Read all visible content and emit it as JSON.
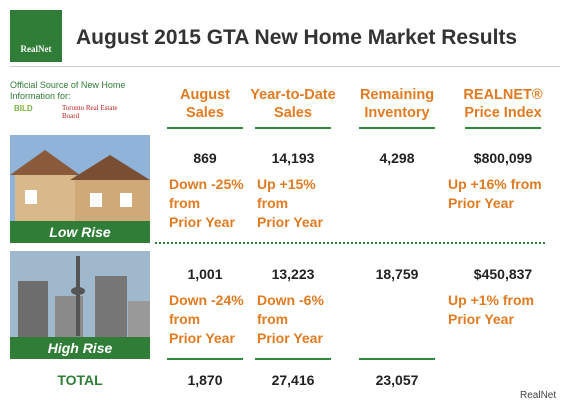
{
  "header": {
    "logo": "RealNet",
    "title": "August 2015 GTA New Home Market Results"
  },
  "sidebar": {
    "source_note": "Official Source of New Home Information for:",
    "logos": [
      "BILD",
      "Toronto Real Estate Board"
    ]
  },
  "table": {
    "columns": [
      "August\nSales",
      "Year-to-Date\nSales",
      "Remaining\nInventory",
      "REALNET®\nPrice Index"
    ],
    "rows": [
      {
        "label": "Low Rise",
        "values": [
          "869",
          "14,193",
          "4,298",
          "$800,099"
        ],
        "changes": [
          "Down -25%\nfrom\nPrior Year",
          "Up +15%\nfrom\nPrior Year",
          null,
          "Up +16% from\nPrior Year"
        ]
      },
      {
        "label": "High Rise",
        "values": [
          "1,001",
          "13,223",
          "18,759",
          "$450,837"
        ],
        "changes": [
          "Down -24%\nfrom\nPrior Year",
          "Down -6%\nfrom\nPrior Year",
          null,
          "Up +1% from\nPrior Year"
        ]
      }
    ],
    "total": {
      "label": "TOTAL",
      "values": [
        "1,870",
        "27,416",
        "23,057"
      ]
    }
  },
  "credit": "RealNet"
}
